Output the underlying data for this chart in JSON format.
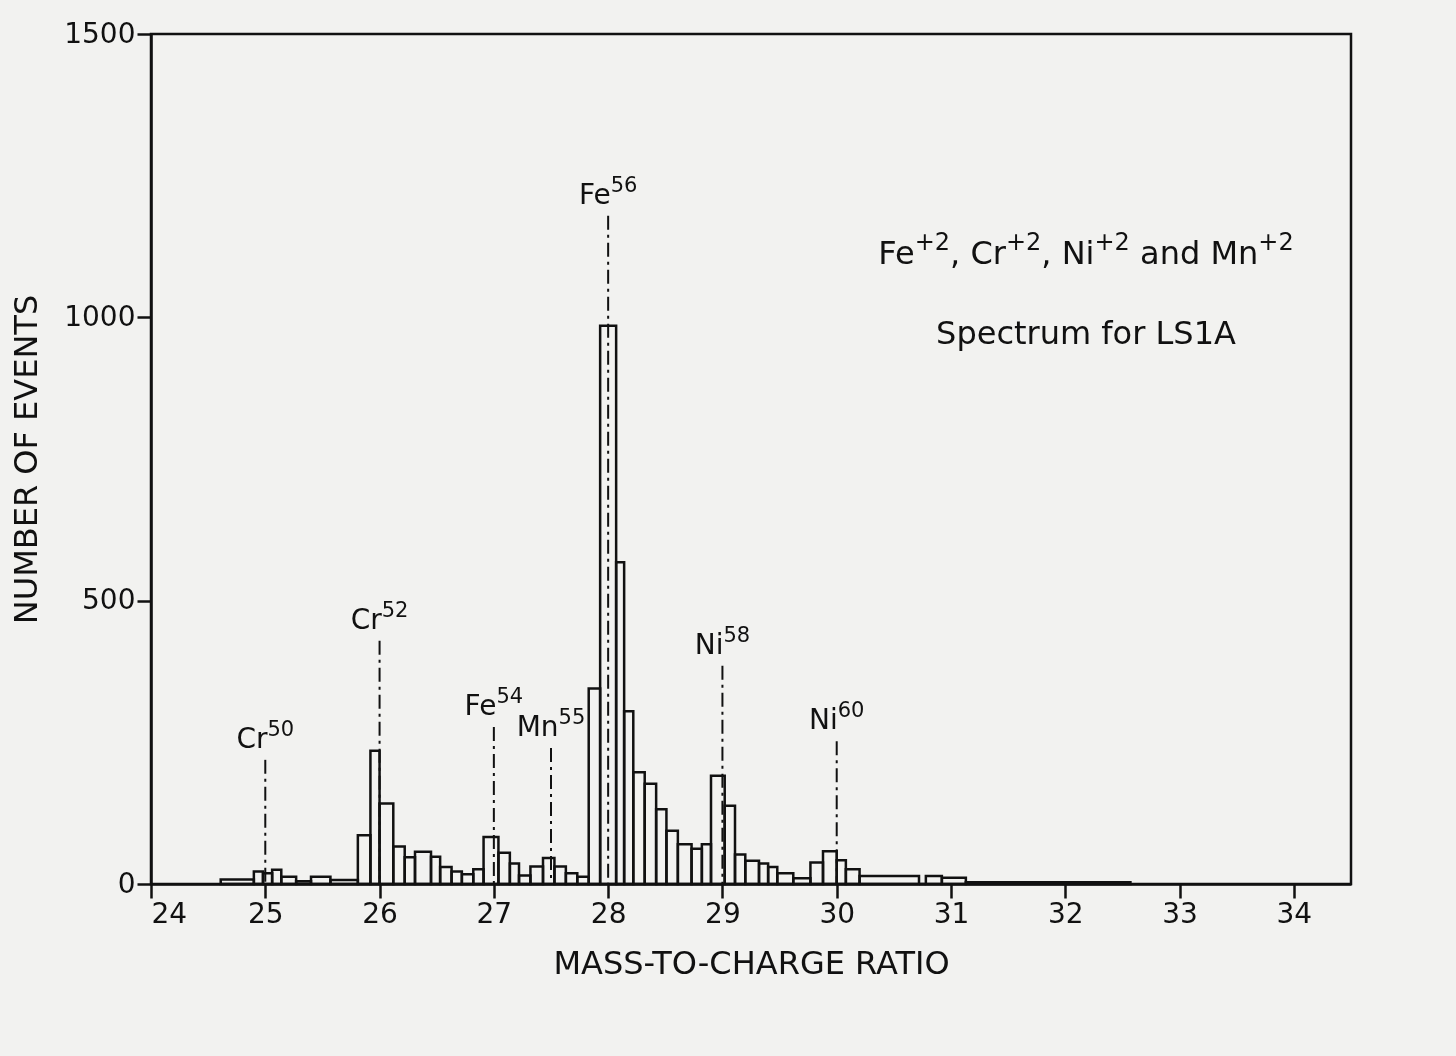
{
  "chart_data": {
    "type": "histogram",
    "title": "Fe$^{+2}$, Cr$^{+2}$, Ni$^{+2}$ and Mn$^{+2}$",
    "subtitle": "Spectrum  for LS1A",
    "xlabel": "MASS-TO-CHARGE RATIO",
    "ylabel": "NUMBER OF EVENTS",
    "bins": [
      24.61,
      24.9,
      24.98,
      25.06,
      25.14,
      25.27,
      25.4,
      25.57,
      25.81,
      25.92,
      26.0,
      26.12,
      26.22,
      26.31,
      26.45,
      26.53,
      26.63,
      26.72,
      26.82,
      26.91,
      27.04,
      27.14,
      27.22,
      27.32,
      27.43,
      27.53,
      27.63,
      27.73,
      27.83,
      27.93,
      28.07,
      28.14,
      28.22,
      28.32,
      28.42,
      28.51,
      28.61,
      28.73,
      28.82,
      28.9,
      29.02,
      29.11,
      29.2,
      29.32,
      29.4,
      29.48,
      29.62,
      29.77,
      29.88,
      30.0,
      30.08,
      30.2,
      30.72,
      30.78,
      30.92,
      31.13,
      32.57
    ],
    "values": [
      8,
      22,
      19,
      25,
      13,
      5,
      13,
      7,
      86,
      235,
      142,
      66,
      47,
      57,
      48,
      30,
      22,
      17,
      26,
      83,
      55,
      36,
      15,
      31,
      46,
      31,
      19,
      13,
      345,
      985,
      568,
      305,
      197,
      177,
      132,
      94,
      70,
      62,
      70,
      191,
      138,
      52,
      41,
      36,
      30,
      19,
      10,
      38,
      58,
      42,
      26,
      14,
      0,
      14,
      11,
      3
    ],
    "color": "#111111",
    "xlim": [
      24,
      34.5
    ],
    "xticks": [
      24,
      25,
      26,
      27,
      28,
      29,
      30,
      31,
      32,
      33,
      34
    ],
    "ylim": [
      0,
      1500
    ],
    "yticks": [
      0,
      500,
      1000,
      1500
    ],
    "ref_lines": [
      {
        "axis": "x",
        "value": 25,
        "label": "Cr$^{50}$",
        "line_style": "dashed"
      },
      {
        "axis": "x",
        "value": 26,
        "label": "Cr$^{52}$",
        "line_style": "dashed"
      },
      {
        "axis": "x",
        "value": 27,
        "label": "Fe$^{54}$",
        "line_style": "dashed"
      },
      {
        "axis": "x",
        "value": 27.5,
        "label": "Mn$^{55}$",
        "line_style": "dashed"
      },
      {
        "axis": "x",
        "value": 28,
        "label": "Fe$^{56}$",
        "line_style": "dashed"
      },
      {
        "axis": "x",
        "value": 29,
        "label": "Ni$^{58}$",
        "line_style": "dashed"
      },
      {
        "axis": "x",
        "value": 30,
        "label": "Ni$^{60}$",
        "line_style": "dashed"
      }
    ]
  }
}
